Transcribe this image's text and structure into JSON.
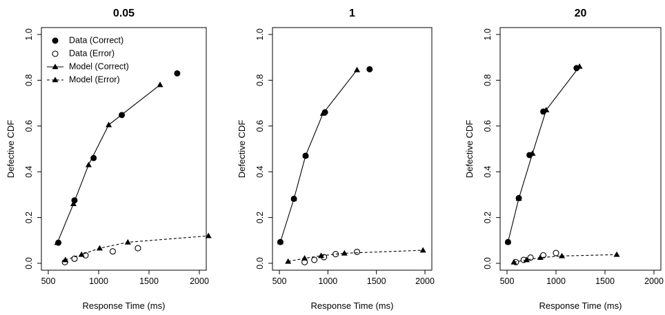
{
  "chart_data": [
    {
      "type": "line",
      "title": "0.05",
      "xlabel": "Response Time (ms)",
      "ylabel": "Defective CDF",
      "xlim": [
        500,
        2000
      ],
      "ylim": [
        0,
        1
      ],
      "xticks": [
        500,
        1000,
        1500,
        2000
      ],
      "yticks": [
        0.0,
        0.2,
        0.4,
        0.6,
        0.8,
        1.0
      ],
      "ytick_labels": [
        "0.0",
        "0.2",
        "0.4",
        "0.6",
        "0.8",
        "1.0"
      ],
      "legend": {
        "placement": "top-left",
        "entries": [
          "Data (Correct)",
          "Data (Error)",
          "Model (Correct)",
          "Model (Error)"
        ]
      },
      "series": [
        {
          "name": "Data (Correct)",
          "marker": "filled-circle",
          "x": [
            600,
            760,
            950,
            1230,
            1780
          ],
          "y": [
            0.09,
            0.275,
            0.46,
            0.648,
            0.83
          ]
        },
        {
          "name": "Data (Error)",
          "marker": "open-circle",
          "x": [
            665,
            760,
            870,
            1140,
            1390
          ],
          "y": [
            0.005,
            0.02,
            0.035,
            0.052,
            0.066
          ]
        },
        {
          "name": "Model (Correct)",
          "marker": "filled-triangle",
          "line": "solid",
          "x": [
            590,
            750,
            900,
            1100,
            1610
          ],
          "y": [
            0.09,
            0.26,
            0.43,
            0.605,
            0.78
          ]
        },
        {
          "name": "Model (Error)",
          "marker": "filled-triangle",
          "line": "dashed",
          "x": [
            670,
            830,
            1010,
            1290,
            2090
          ],
          "y": [
            0.015,
            0.038,
            0.066,
            0.092,
            0.12
          ]
        }
      ]
    },
    {
      "type": "line",
      "title": "1",
      "xlabel": "Response Time (ms)",
      "ylabel": "Defective CDF",
      "xlim": [
        500,
        2000
      ],
      "ylim": [
        0,
        1
      ],
      "xticks": [
        500,
        1000,
        1500,
        2000
      ],
      "yticks": [
        0.0,
        0.2,
        0.4,
        0.6,
        0.8,
        1.0
      ],
      "ytick_labels": [
        "0.0",
        "0.2",
        "0.4",
        "0.6",
        "0.8",
        "1.0"
      ],
      "series": [
        {
          "name": "Data (Correct)",
          "marker": "filled-circle",
          "x": [
            510,
            650,
            770,
            970,
            1430
          ],
          "y": [
            0.093,
            0.282,
            0.47,
            0.66,
            0.848
          ]
        },
        {
          "name": "Data (Error)",
          "marker": "open-circle",
          "x": [
            760,
            860,
            960,
            1080,
            1300
          ],
          "y": [
            0.005,
            0.015,
            0.027,
            0.04,
            0.05
          ]
        },
        {
          "name": "Model (Correct)",
          "marker": "filled-triangle",
          "line": "solid",
          "x": [
            510,
            650,
            770,
            950,
            1300
          ],
          "y": [
            0.093,
            0.282,
            0.47,
            0.655,
            0.845
          ]
        },
        {
          "name": "Model (Error)",
          "marker": "filled-triangle",
          "line": "dashed",
          "x": [
            590,
            760,
            930,
            1170,
            1980
          ],
          "y": [
            0.008,
            0.022,
            0.033,
            0.044,
            0.057
          ]
        }
      ]
    },
    {
      "type": "line",
      "title": "20",
      "xlabel": "Response Time (ms)",
      "ylabel": "Defective CDF",
      "xlim": [
        500,
        2000
      ],
      "ylim": [
        0,
        1
      ],
      "xticks": [
        500,
        1000,
        1500,
        2000
      ],
      "yticks": [
        0.0,
        0.2,
        0.4,
        0.6,
        0.8,
        1.0
      ],
      "ytick_labels": [
        "0.0",
        "0.2",
        "0.4",
        "0.6",
        "0.8",
        "1.0"
      ],
      "series": [
        {
          "name": "Data (Correct)",
          "marker": "filled-circle",
          "x": [
            510,
            620,
            730,
            870,
            1210
          ],
          "y": [
            0.093,
            0.285,
            0.473,
            0.663,
            0.853
          ]
        },
        {
          "name": "Data (Error)",
          "marker": "open-circle",
          "x": [
            590,
            670,
            740,
            870,
            1000
          ],
          "y": [
            0.005,
            0.015,
            0.025,
            0.035,
            0.045
          ]
        },
        {
          "name": "Model (Correct)",
          "marker": "filled-triangle",
          "line": "solid",
          "x": [
            510,
            620,
            760,
            900,
            1240
          ],
          "y": [
            0.093,
            0.283,
            0.48,
            0.67,
            0.86
          ]
        },
        {
          "name": "Model (Error)",
          "marker": "filled-triangle",
          "line": "dashed",
          "x": [
            570,
            700,
            840,
            1060,
            1620
          ],
          "y": [
            0.005,
            0.015,
            0.025,
            0.032,
            0.038
          ]
        }
      ]
    }
  ]
}
